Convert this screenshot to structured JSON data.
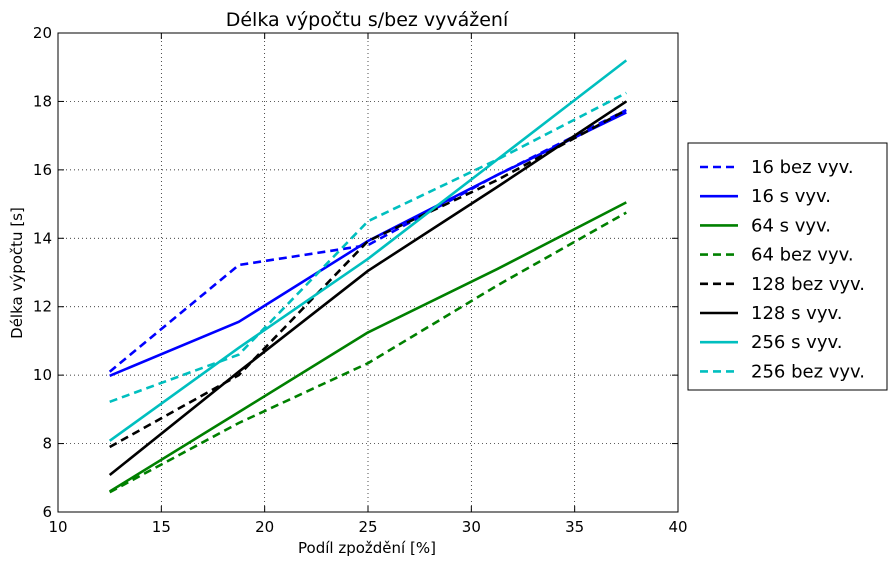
{
  "chart_data": {
    "type": "line",
    "title": "Délka výpočtu s/bez vyvážení",
    "xlabel": "Podíl zpoždění [%]",
    "ylabel": "Délka výpočtu [s]",
    "xlim": [
      10,
      40
    ],
    "ylim": [
      6,
      20
    ],
    "xticks": [
      10,
      15,
      20,
      25,
      30,
      35,
      40
    ],
    "yticks": [
      6,
      8,
      10,
      12,
      14,
      16,
      18,
      20
    ],
    "grid": true,
    "legend_position": "right",
    "x": [
      12.5,
      18.75,
      25,
      31.25,
      37.5
    ],
    "series": [
      {
        "name": "16 bez vyv.",
        "color": "#0000ff",
        "dash": true,
        "values": [
          10.1,
          13.22,
          13.8,
          15.85,
          17.75
        ]
      },
      {
        "name": "16 s vyv.",
        "color": "#0000ff",
        "dash": false,
        "values": [
          9.98,
          11.56,
          13.92,
          15.85,
          17.68
        ]
      },
      {
        "name": "64 s vyv.",
        "color": "#008000",
        "dash": false,
        "values": [
          6.6,
          8.92,
          11.25,
          13.1,
          15.05
        ]
      },
      {
        "name": "64 bez vyv.",
        "color": "#008000",
        "dash": true,
        "values": [
          6.58,
          8.6,
          10.35,
          12.62,
          14.75
        ]
      },
      {
        "name": "128 bez vyv.",
        "color": "#000000",
        "dash": true,
        "values": [
          7.9,
          10.0,
          13.92,
          15.7,
          17.75
        ]
      },
      {
        "name": "128 s vyv.",
        "color": "#000000",
        "dash": false,
        "values": [
          7.08,
          10.1,
          13.05,
          15.5,
          18.0
        ]
      },
      {
        "name": "256 s vyv.",
        "color": "#00bfbf",
        "dash": false,
        "values": [
          8.08,
          10.8,
          13.4,
          16.3,
          19.2
        ]
      },
      {
        "name": "256 bez vyv.",
        "color": "#00bfbf",
        "dash": true,
        "values": [
          9.22,
          10.6,
          14.5,
          16.3,
          18.25
        ]
      }
    ]
  }
}
